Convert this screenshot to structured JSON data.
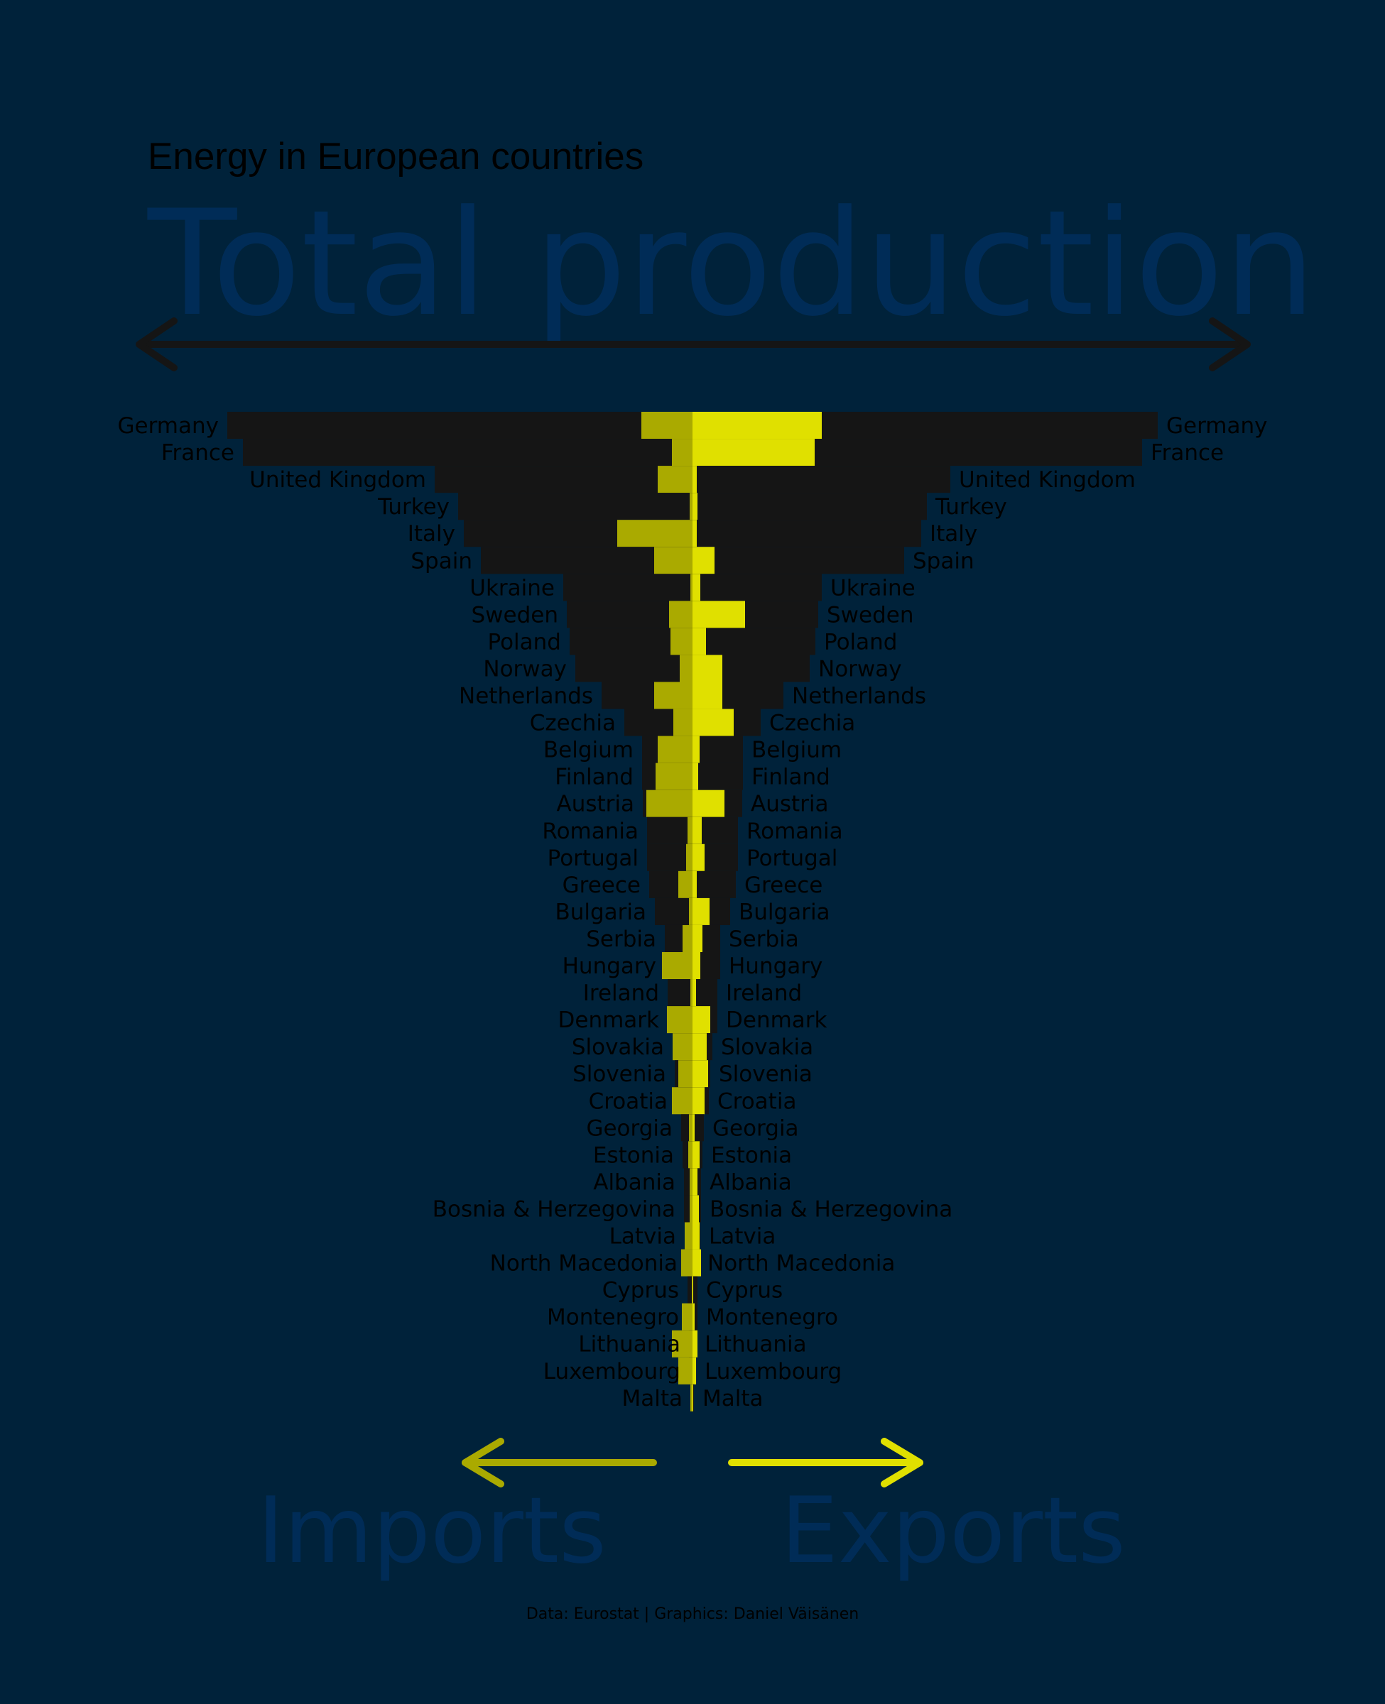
{
  "supertitle": "Energy in European countries",
  "title": "Total production",
  "bottom_left_label": "Imports",
  "bottom_right_label": "Exports",
  "caption": "Data: Eurostat | Graphics: Daniel Väisänen",
  "colors": {
    "background": "#00223a",
    "production": "#151515",
    "imports": "#aaaa00",
    "exports": "#e0e000",
    "title_text": "#002c57",
    "arrow_top": "#151515"
  },
  "chart_data": {
    "type": "bar",
    "description_note": "Diverging bars per country: production (black, symmetric), imports (left, dark yellow), exports (right, bright yellow). Values in relative units read from bar lengths.",
    "categories": [
      "Germany",
      "France",
      "United Kingdom",
      "Turkey",
      "Italy",
      "Spain",
      "Ukraine",
      "Sweden",
      "Poland",
      "Norway",
      "Netherlands",
      "Czechia",
      "Belgium",
      "Finland",
      "Austria",
      "Romania",
      "Portugal",
      "Greece",
      "Bulgaria",
      "Serbia",
      "Hungary",
      "Ireland",
      "Denmark",
      "Slovakia",
      "Slovenia",
      "Croatia",
      "Georgia",
      "Estonia",
      "Albania",
      "Bosnia & Herzegovina",
      "Latvia",
      "North Macedonia",
      "Cyprus",
      "Montenegro",
      "Lithuania",
      "Luxembourg",
      "Malta"
    ],
    "series": [
      {
        "name": "production",
        "values": [
          655,
          633,
          363,
          330,
          322,
          298,
          182,
          177,
          173,
          165,
          128,
          96,
          71,
          71,
          70,
          64,
          64,
          61,
          53,
          39,
          39,
          35,
          35,
          28,
          25,
          23,
          16,
          14,
          12,
          12,
          11,
          9,
          7,
          7,
          5,
          5,
          2
        ]
      },
      {
        "name": "imports",
        "values": [
          72,
          29,
          49,
          4,
          106,
          54,
          3,
          33,
          31,
          18,
          54,
          27,
          49,
          52,
          65,
          7,
          9,
          20,
          5,
          14,
          43,
          3,
          36,
          28,
          20,
          29,
          5,
          6,
          4,
          4,
          11,
          16,
          1,
          15,
          29,
          20,
          3
        ]
      },
      {
        "name": "exports",
        "values": [
          182,
          172,
          6,
          7,
          6,
          31,
          11,
          74,
          19,
          42,
          42,
          58,
          10,
          8,
          45,
          13,
          17,
          6,
          24,
          14,
          11,
          5,
          25,
          20,
          22,
          17,
          3,
          10,
          7,
          9,
          10,
          12,
          1,
          3,
          7,
          5,
          1
        ]
      }
    ],
    "grid": false,
    "legend": "none"
  }
}
